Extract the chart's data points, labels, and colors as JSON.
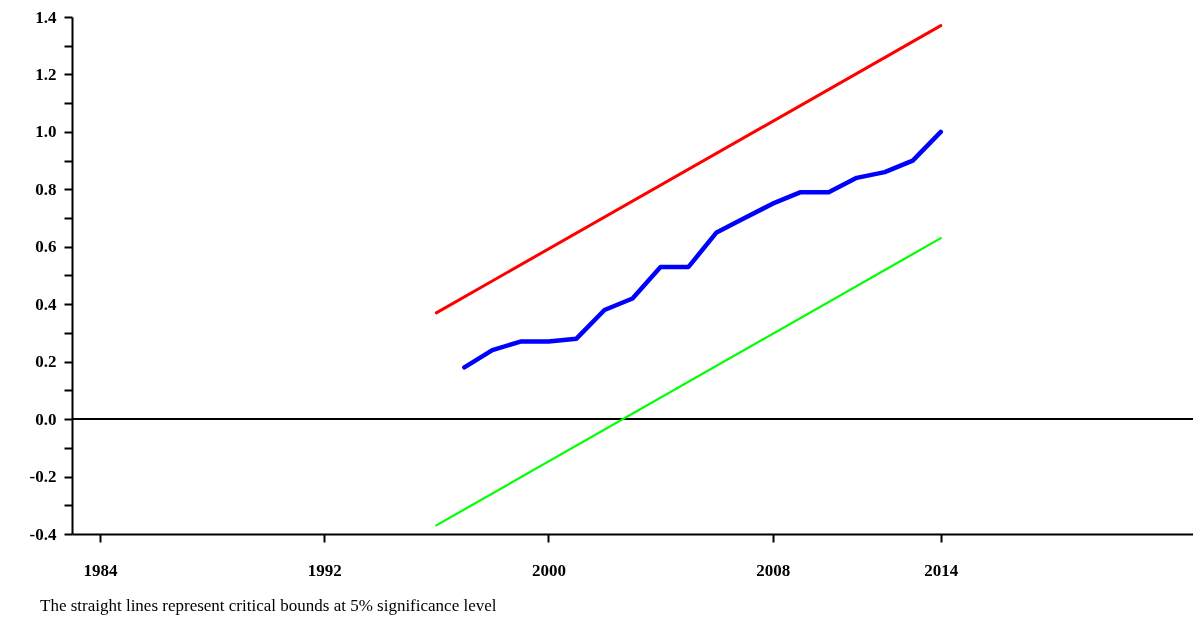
{
  "chart_data": {
    "type": "line",
    "series": [
      {
        "color": "#0000ff",
        "x": [
          1997,
          1998,
          1999,
          2000,
          2001,
          2002,
          2003,
          2004,
          2005,
          2006,
          2007,
          2008,
          2009,
          2010,
          2011,
          2012,
          2013,
          2014
        ],
        "values": [
          0.18,
          0.24,
          0.27,
          0.27,
          0.28,
          0.38,
          0.42,
          0.53,
          0.53,
          0.65,
          0.7,
          0.75,
          0.79,
          0.79,
          0.84,
          0.86,
          0.9,
          1.0
        ]
      },
      {
        "color": "#ff0000",
        "x": [
          1996,
          2014
        ],
        "values": [
          0.37,
          1.37
        ]
      },
      {
        "color": "#00ff00",
        "x": [
          1996,
          2014
        ],
        "values": [
          -0.37,
          0.63
        ]
      }
    ],
    "xlim": [
      1983,
      2023
    ],
    "xticks": [
      1984,
      1992,
      2000,
      2008,
      2014
    ],
    "ylim": [
      -0.4,
      1.4
    ],
    "yticks": [
      {
        "value": -0.4,
        "label": "-0.4"
      },
      {
        "value": -0.3,
        "label": null
      },
      {
        "value": -0.2,
        "label": "-0.2"
      },
      {
        "value": -0.1,
        "label": null
      },
      {
        "value": 0,
        "label": "0.0"
      },
      {
        "value": 0.1,
        "label": null
      },
      {
        "value": 0.2,
        "label": "0.2"
      },
      {
        "value": 0.3,
        "label": null
      },
      {
        "value": 0.4,
        "label": "0.4"
      },
      {
        "value": 0.5,
        "label": null
      },
      {
        "value": 0.6,
        "label": "0.6"
      },
      {
        "value": 0.7,
        "label": null
      },
      {
        "value": 0.8,
        "label": "0.8"
      },
      {
        "value": 0.9,
        "label": null
      },
      {
        "value": 1.0,
        "label": "1.0"
      },
      {
        "value": 1.1,
        "label": null
      },
      {
        "value": 1.2,
        "label": "1.2"
      },
      {
        "value": 1.3,
        "label": null
      },
      {
        "value": 1.4,
        "label": "1.4"
      }
    ],
    "ref_lines": [
      {
        "axis": "y",
        "value": 0,
        "color": "#000000"
      }
    ],
    "line_style": "solid",
    "annotations": [
      "The straight lines represent critical bounds at 5% significance level"
    ]
  }
}
